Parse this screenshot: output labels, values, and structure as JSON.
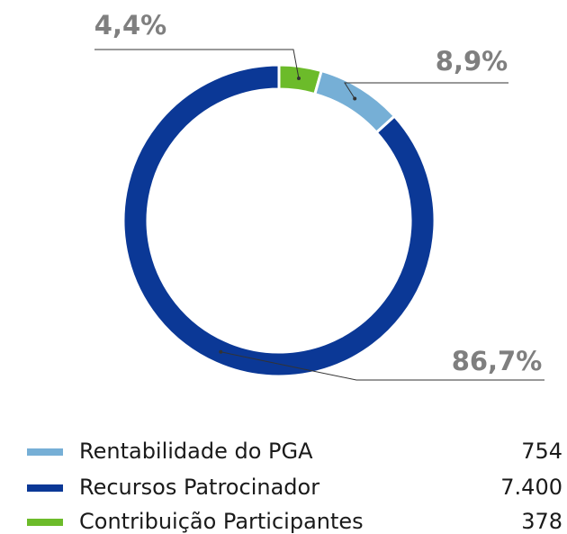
{
  "chart_data": {
    "type": "pie",
    "donut": true,
    "categories": [
      "Rentabilidade do PGA",
      "Recursos Patrocinador",
      "Contribuição Participantes"
    ],
    "values": [
      8.9,
      86.7,
      4.4
    ],
    "value_labels": [
      "8,9%",
      "86,7%",
      "4,4%"
    ],
    "colors": [
      "#76afd6",
      "#0b3896",
      "#6cbb2a"
    ],
    "amounts": [
      754,
      7400,
      378
    ],
    "amount_labels": [
      "754",
      "7.400",
      "378"
    ]
  }
}
